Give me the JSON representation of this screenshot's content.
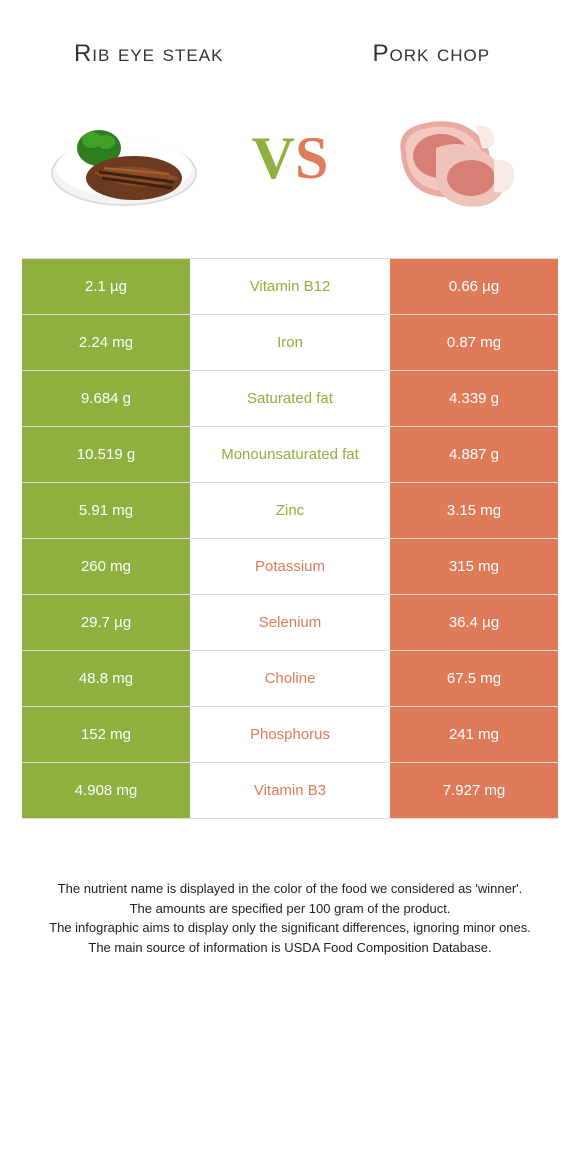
{
  "header": {
    "left_title": "Rib eye steak",
    "right_title": "Pork chop"
  },
  "vs": {
    "v": "V",
    "s": "S"
  },
  "colors": {
    "left_bg": "#8fb03e",
    "right_bg": "#e07b5a",
    "left_text": "#8fb03e",
    "right_text": "#e07b5a"
  },
  "rows": [
    {
      "left": "2.1 µg",
      "name": "Vitamin B12",
      "right": "0.66 µg",
      "winner": "left"
    },
    {
      "left": "2.24 mg",
      "name": "Iron",
      "right": "0.87 mg",
      "winner": "left"
    },
    {
      "left": "9.684 g",
      "name": "Saturated fat",
      "right": "4.339 g",
      "winner": "left"
    },
    {
      "left": "10.519 g",
      "name": "Monounsaturated fat",
      "right": "4.887 g",
      "winner": "left"
    },
    {
      "left": "5.91 mg",
      "name": "Zinc",
      "right": "3.15 mg",
      "winner": "left"
    },
    {
      "left": "260 mg",
      "name": "Potassium",
      "right": "315 mg",
      "winner": "right"
    },
    {
      "left": "29.7 µg",
      "name": "Selenium",
      "right": "36.4 µg",
      "winner": "right"
    },
    {
      "left": "48.8 mg",
      "name": "Choline",
      "right": "67.5 mg",
      "winner": "right"
    },
    {
      "left": "152 mg",
      "name": "Phosphorus",
      "right": "241 mg",
      "winner": "right"
    },
    {
      "left": "4.908 mg",
      "name": "Vitamin B3",
      "right": "7.927 mg",
      "winner": "right"
    }
  ],
  "footnotes": [
    "The nutrient name is displayed in the color of the food we considered as 'winner'.",
    "The amounts are specified per 100 gram of the product.",
    "The infographic aims to display only the significant differences, ignoring minor ones.",
    "The main source of information is USDA Food Composition Database."
  ]
}
